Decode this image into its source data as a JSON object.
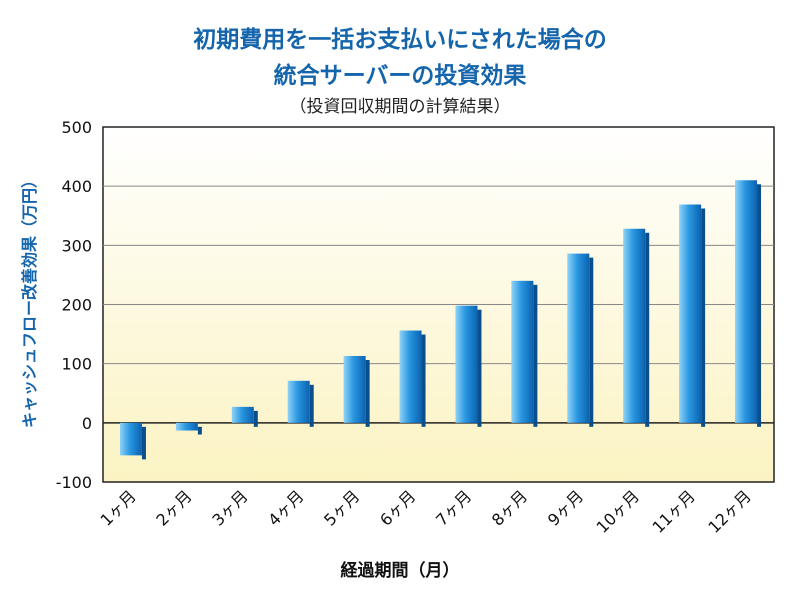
{
  "title_line1": "初期費用を一括お支払いにされた場合の",
  "title_line2": "統合サーバーの投資効果",
  "subtitle": "（投資回収期間の計算結果）",
  "colors": {
    "title": "#1565ac",
    "bar_light": "#5ab8f0",
    "bar_dark": "#0a6fc0",
    "bar_side": "#0a4f8c",
    "plot_bg_top": "#ffffff",
    "plot_bg_bottom": "#fbf3c2"
  },
  "chart_data": {
    "type": "bar",
    "title": "初期費用を一括お支払いにされた場合の 統合サーバーの投資効果",
    "subtitle": "（投資回収期間の計算結果）",
    "xlabel": "経過期間（月）",
    "ylabel": "キャッシュフロー改善効果（万円）",
    "categories": [
      "1ヶ月",
      "2ヶ月",
      "3ヶ月",
      "4ヶ月",
      "5ヶ月",
      "6ヶ月",
      "7ヶ月",
      "8ヶ月",
      "9ヶ月",
      "10ヶ月",
      "11ヶ月",
      "12ヶ月"
    ],
    "values": [
      -55,
      -13,
      27,
      71,
      113,
      156,
      198,
      240,
      286,
      328,
      369,
      410
    ],
    "ylim": [
      -100,
      500
    ],
    "yticks": [
      "500",
      "400",
      "300",
      "200",
      "100",
      "0",
      "-100"
    ],
    "grid": true,
    "legend": "none"
  }
}
